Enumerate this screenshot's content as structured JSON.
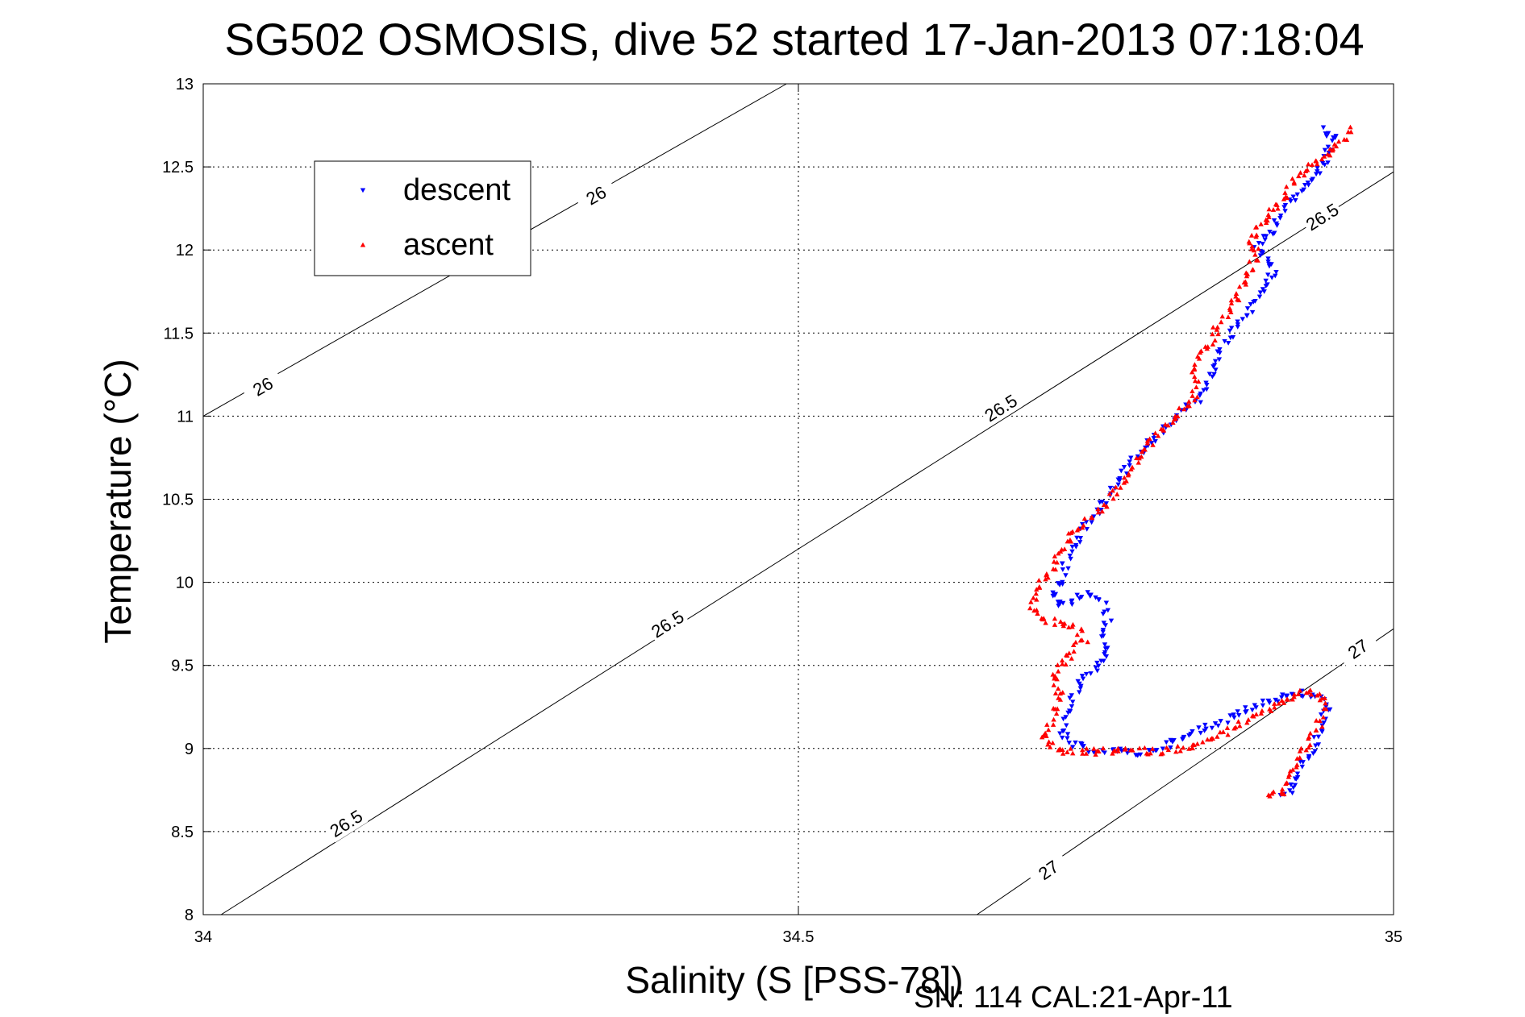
{
  "chart_data": {
    "type": "scatter",
    "title": "SG502 OSMOSIS, dive 52 started 17-Jan-2013 07:18:04",
    "xlabel": "Salinity (S [PSS-78])",
    "ylabel": "Temperature (°C)",
    "xlim": [
      34,
      35
    ],
    "ylim": [
      8,
      13
    ],
    "xticks": [
      "34",
      "34.5",
      "35"
    ],
    "yticks": [
      "8",
      "8.5",
      "9",
      "9.5",
      "10",
      "10.5",
      "11",
      "11.5",
      "12",
      "12.5",
      "13"
    ],
    "grid": true,
    "legend": {
      "placement": "top-left"
    },
    "density_contours": [
      {
        "label": "26",
        "points": [
          [
            34.0,
            11.0
          ],
          [
            34.49,
            13.0
          ]
        ],
        "label_positions": [
          [
            34.05,
            11.18
          ],
          [
            34.33,
            12.33
          ]
        ]
      },
      {
        "label": "26.5",
        "points": [
          [
            34.015,
            8.0
          ],
          [
            35.0,
            12.47
          ]
        ],
        "label_positions": [
          [
            34.12,
            8.55
          ],
          [
            34.39,
            9.75
          ],
          [
            34.67,
            11.05
          ],
          [
            34.94,
            12.2
          ]
        ]
      },
      {
        "label": "27",
        "points": [
          [
            34.65,
            8.0
          ],
          [
            35.0,
            9.72
          ]
        ],
        "label_positions": [
          [
            34.71,
            8.27
          ],
          [
            34.97,
            9.6
          ]
        ]
      }
    ],
    "series": [
      {
        "name": "descent",
        "color": "#0000ff",
        "marker": "triangle-down",
        "path": [
          [
            34.94,
            12.73
          ],
          [
            34.95,
            12.68
          ],
          [
            34.945,
            12.6
          ],
          [
            34.94,
            12.5
          ],
          [
            34.93,
            12.42
          ],
          [
            34.92,
            12.33
          ],
          [
            34.905,
            12.22
          ],
          [
            34.9,
            12.12
          ],
          [
            34.89,
            12.07
          ],
          [
            34.885,
            12.02
          ],
          [
            34.895,
            11.96
          ],
          [
            34.9,
            11.88
          ],
          [
            34.893,
            11.8
          ],
          [
            34.885,
            11.7
          ],
          [
            34.875,
            11.6
          ],
          [
            34.865,
            11.5
          ],
          [
            34.855,
            11.4
          ],
          [
            34.85,
            11.3
          ],
          [
            34.845,
            11.2
          ],
          [
            34.835,
            11.1
          ],
          [
            34.82,
            11.02
          ],
          [
            34.81,
            10.95
          ],
          [
            34.8,
            10.88
          ],
          [
            34.79,
            10.8
          ],
          [
            34.78,
            10.72
          ],
          [
            34.77,
            10.62
          ],
          [
            34.76,
            10.52
          ],
          [
            34.75,
            10.42
          ],
          [
            34.74,
            10.32
          ],
          [
            34.73,
            10.22
          ],
          [
            34.725,
            10.12
          ],
          [
            34.72,
            10.0
          ],
          [
            34.715,
            9.92
          ],
          [
            34.72,
            9.85
          ],
          [
            34.735,
            9.9
          ],
          [
            34.745,
            9.94
          ],
          [
            34.755,
            9.88
          ],
          [
            34.76,
            9.78
          ],
          [
            34.755,
            9.68
          ],
          [
            34.76,
            9.58
          ],
          [
            34.75,
            9.5
          ],
          [
            34.74,
            9.42
          ],
          [
            34.73,
            9.3
          ],
          [
            34.725,
            9.2
          ],
          [
            34.72,
            9.1
          ],
          [
            34.73,
            9.02
          ],
          [
            34.75,
            8.99
          ],
          [
            34.77,
            8.98
          ],
          [
            34.79,
            8.97
          ],
          [
            34.8,
            9.0
          ],
          [
            34.82,
            9.05
          ],
          [
            34.84,
            9.12
          ],
          [
            34.86,
            9.18
          ],
          [
            34.88,
            9.25
          ],
          [
            34.9,
            9.3
          ],
          [
            34.92,
            9.33
          ],
          [
            34.935,
            9.31
          ],
          [
            34.945,
            9.25
          ],
          [
            34.94,
            9.15
          ],
          [
            34.935,
            9.05
          ],
          [
            34.93,
            8.98
          ],
          [
            34.925,
            8.92
          ],
          [
            34.92,
            8.82
          ],
          [
            34.915,
            8.74
          ],
          [
            34.905,
            8.72
          ]
        ]
      },
      {
        "name": "ascent",
        "color": "#ff0000",
        "marker": "triangle-up",
        "path": [
          [
            34.965,
            12.73
          ],
          [
            34.96,
            12.68
          ],
          [
            34.95,
            12.6
          ],
          [
            34.94,
            12.55
          ],
          [
            34.925,
            12.48
          ],
          [
            34.915,
            12.38
          ],
          [
            34.905,
            12.28
          ],
          [
            34.895,
            12.2
          ],
          [
            34.885,
            12.12
          ],
          [
            34.88,
            12.06
          ],
          [
            34.885,
            11.98
          ],
          [
            34.88,
            11.9
          ],
          [
            34.875,
            11.82
          ],
          [
            34.87,
            11.73
          ],
          [
            34.865,
            11.65
          ],
          [
            34.855,
            11.55
          ],
          [
            34.845,
            11.45
          ],
          [
            34.835,
            11.35
          ],
          [
            34.83,
            11.28
          ],
          [
            34.835,
            11.18
          ],
          [
            34.83,
            11.08
          ],
          [
            34.815,
            10.98
          ],
          [
            34.8,
            10.88
          ],
          [
            34.79,
            10.8
          ],
          [
            34.78,
            10.68
          ],
          [
            34.77,
            10.58
          ],
          [
            34.76,
            10.48
          ],
          [
            34.745,
            10.38
          ],
          [
            34.73,
            10.28
          ],
          [
            34.72,
            10.18
          ],
          [
            34.71,
            10.06
          ],
          [
            34.7,
            9.95
          ],
          [
            34.695,
            9.85
          ],
          [
            34.705,
            9.78
          ],
          [
            34.72,
            9.75
          ],
          [
            34.735,
            9.72
          ],
          [
            34.74,
            9.65
          ],
          [
            34.73,
            9.58
          ],
          [
            34.72,
            9.5
          ],
          [
            34.715,
            9.42
          ],
          [
            34.72,
            9.33
          ],
          [
            34.715,
            9.22
          ],
          [
            34.71,
            9.12
          ],
          [
            34.705,
            9.05
          ],
          [
            34.72,
            8.98
          ],
          [
            34.75,
            8.98
          ],
          [
            34.78,
            8.99
          ],
          [
            34.8,
            8.98
          ],
          [
            34.82,
            9.0
          ],
          [
            34.84,
            9.03
          ],
          [
            34.86,
            9.1
          ],
          [
            34.88,
            9.18
          ],
          [
            34.9,
            9.25
          ],
          [
            34.915,
            9.32
          ],
          [
            34.93,
            9.35
          ],
          [
            34.94,
            9.3
          ],
          [
            34.94,
            9.2
          ],
          [
            34.935,
            9.1
          ],
          [
            34.925,
            9.0
          ],
          [
            34.915,
            8.9
          ],
          [
            34.91,
            8.8
          ],
          [
            34.905,
            8.72
          ],
          [
            34.895,
            8.72
          ]
        ]
      }
    ]
  },
  "footer": "SN: 114  CAL:21-Apr-11"
}
